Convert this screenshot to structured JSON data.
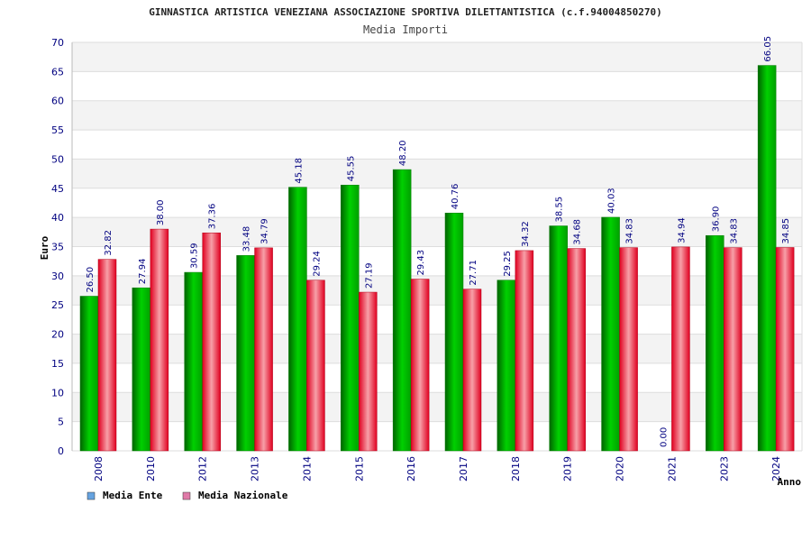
{
  "chart_data": {
    "type": "bar",
    "title": "GINNASTICA ARTISTICA VENEZIANA ASSOCIAZIONE SPORTIVA DILETTANTISTICA (c.f.94004850270)",
    "subtitle": "Media Importi",
    "xlabel": "Anno",
    "ylabel": "Euro",
    "ylim": [
      0,
      70
    ],
    "yticks": [
      0,
      5,
      10,
      15,
      20,
      25,
      30,
      35,
      40,
      45,
      50,
      55,
      60,
      65,
      70
    ],
    "grid": true,
    "legend_position": "bottom-left",
    "categories": [
      "2008",
      "2010",
      "2012",
      "2013",
      "2014",
      "2015",
      "2016",
      "2017",
      "2018",
      "2019",
      "2020",
      "2021",
      "2023",
      "2024"
    ],
    "series": [
      {
        "name": "Media Ente",
        "color": "#00b000",
        "legend_color": "#66a3e0",
        "values": [
          26.5,
          27.94,
          30.59,
          33.48,
          45.18,
          45.55,
          48.2,
          40.76,
          29.25,
          38.55,
          40.03,
          0.0,
          36.9,
          66.05
        ],
        "labels": [
          "26.50",
          "27.94",
          "30.59",
          "33.48",
          "45.18",
          "45.55",
          "48.20",
          "40.76",
          "29.25",
          "38.55",
          "40.03",
          "0.00",
          "36.90",
          "66.05"
        ]
      },
      {
        "name": "Media Nazionale",
        "color": "#e8102a",
        "legend_color": "#e07aa8",
        "values": [
          32.82,
          38.0,
          37.36,
          34.79,
          29.24,
          27.19,
          29.43,
          27.71,
          34.32,
          34.68,
          34.83,
          34.94,
          34.83,
          34.85
        ],
        "labels": [
          "32.82",
          "38.00",
          "37.36",
          "34.79",
          "29.24",
          "27.19",
          "29.43",
          "27.71",
          "34.32",
          "34.68",
          "34.83",
          "34.94",
          "34.83",
          "34.85"
        ]
      }
    ]
  }
}
